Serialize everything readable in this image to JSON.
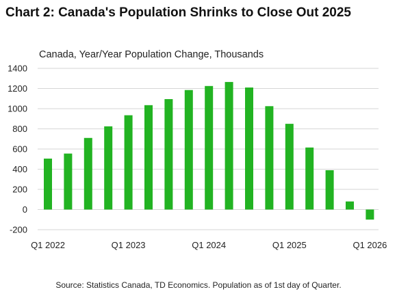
{
  "chart_data": {
    "type": "bar",
    "title": "Chart 2: Canada's Population Shrinks to Close Out 2025",
    "subtitle": "Canada, Year/Year Population Change, Thousands",
    "source": "Source: Statistics Canada, TD Economics. Population as of 1st day of Quarter.",
    "color": "#22b322",
    "x_tick_labels": [
      "Q1 2022",
      "Q1 2023",
      "Q1 2024",
      "Q1 2025",
      "Q1 2026"
    ],
    "x_tick_indices": [
      0,
      4,
      8,
      12,
      16
    ],
    "y_tick_labels": [
      "1400",
      "1200",
      "1000",
      "800",
      "600",
      "400",
      "200",
      "0",
      "-200"
    ],
    "ylim": [
      -200,
      1400
    ],
    "yticks": [
      1400,
      1200,
      1000,
      800,
      600,
      400,
      200,
      0,
      -200
    ],
    "grid": true,
    "values": [
      505,
      555,
      710,
      825,
      935,
      1035,
      1095,
      1185,
      1225,
      1265,
      1210,
      1025,
      850,
      615,
      390,
      80,
      -100
    ]
  }
}
